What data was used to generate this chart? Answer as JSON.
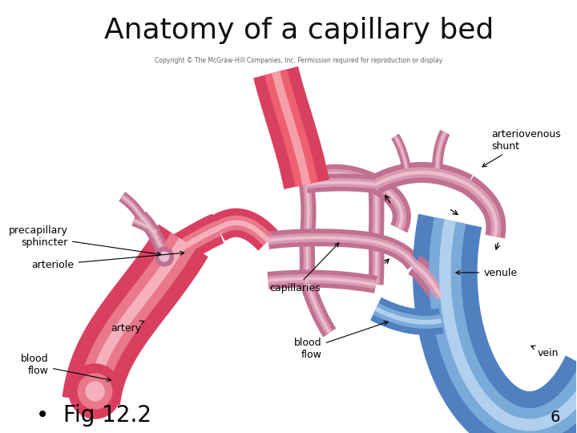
{
  "title": "Anatomy of a capillary bed",
  "copyright_text": "Copyright © The McGraw-Hill Companies, Inc. Permission required for reproduction or display.",
  "bullet_text": "Fig 12.2",
  "page_number": "6",
  "background_color": "#ffffff",
  "title_fontsize": 26,
  "title_color": "#111111",
  "bullet_fontsize": 20,
  "page_num_fontsize": 14,
  "label_fontsize": 9,
  "artery_color": "#d94060",
  "artery_mid": "#e8788a",
  "artery_light": "#f5b0bc",
  "vein_color": "#5080c0",
  "vein_mid": "#7aaad8",
  "vein_light": "#b0d0ee",
  "cap_color": "#c07090",
  "cap_mid": "#d898b0",
  "cap_light": "#eabece"
}
